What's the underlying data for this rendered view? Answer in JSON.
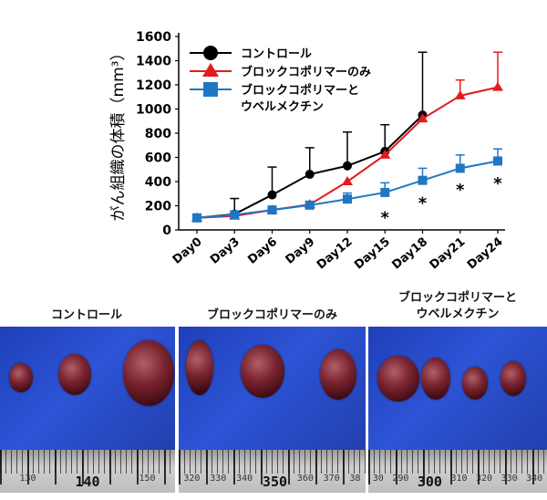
{
  "chart_data": {
    "type": "line",
    "ylabel": "がん組織の体積（mm³）",
    "ylim": [
      0,
      1600
    ],
    "yticks": [
      0,
      200,
      400,
      600,
      800,
      1000,
      1200,
      1400,
      1600
    ],
    "categories": [
      "Day0",
      "Day3",
      "Day6",
      "Day9",
      "Day12",
      "Day15",
      "Day18",
      "Day21",
      "Day24"
    ],
    "series": [
      {
        "name": "コントロール",
        "color": "#000000",
        "marker": "circle",
        "values": [
          100,
          130,
          290,
          460,
          530,
          650,
          950,
          null,
          null
        ],
        "error": [
          0,
          130,
          230,
          220,
          280,
          220,
          520,
          null,
          null
        ]
      },
      {
        "name": "ブロックコポリマーのみ",
        "color": "#e41a1c",
        "marker": "triangle",
        "values": [
          100,
          115,
          165,
          210,
          400,
          620,
          920,
          1110,
          1180
        ],
        "error": [
          0,
          0,
          0,
          0,
          0,
          0,
          0,
          130,
          290
        ]
      },
      {
        "name": "ブロックコポリマーと\nウベルメクチン",
        "color": "#1f77c4",
        "marker": "square",
        "values": [
          100,
          125,
          165,
          205,
          255,
          310,
          410,
          510,
          570
        ],
        "error": [
          0,
          0,
          20,
          30,
          50,
          80,
          100,
          110,
          100
        ]
      }
    ],
    "annotations": [
      {
        "x": "Day15",
        "text": "*"
      },
      {
        "x": "Day18",
        "text": "*"
      },
      {
        "x": "Day21",
        "text": "*"
      },
      {
        "x": "Day24",
        "text": "*"
      }
    ],
    "legend_position": "top-left"
  },
  "photos": [
    {
      "label": "コントロール",
      "ruler_numbers": [
        "130",
        "140",
        "150"
      ],
      "ruler_big_index": 1
    },
    {
      "label": "ブロックコポリマーのみ",
      "ruler_numbers": [
        "320",
        "330",
        "340",
        "350",
        "360",
        "370",
        "38"
      ],
      "ruler_big_index": 3
    },
    {
      "label": "ブロックコポリマーと\nウベルメクチン",
      "ruler_numbers": [
        "30",
        "290",
        "300",
        "310",
        "320",
        "330",
        "340"
      ],
      "ruler_big_index": 2
    }
  ]
}
